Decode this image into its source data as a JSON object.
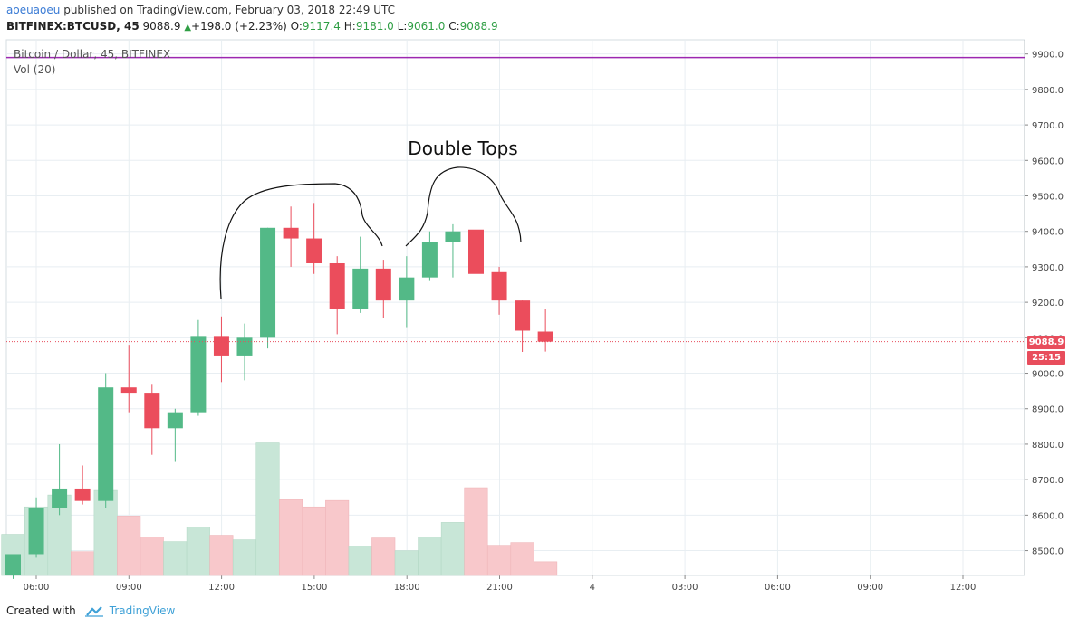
{
  "header": {
    "author": "aoeuaoeu",
    "published_text": "published on TradingView.com, February 03, 2018 22:49 UTC",
    "symbol": "BITFINEX:BTCUSD, 45",
    "last": "9088.9",
    "change": "+198.0 (+2.23%)",
    "o_label": "O:",
    "o_value": "9117.4",
    "h_label": "H:",
    "h_value": "9181.0",
    "l_label": "L:",
    "l_value": "9061.0",
    "c_label": "C:",
    "c_value": "9088.9"
  },
  "legend": {
    "title": "Bitcoin / Dollar, 45, BITFINEX",
    "volume": "Vol (20)"
  },
  "footer": {
    "created_with": "Created with",
    "brand": "TradingView"
  },
  "badges": {
    "price": "9088.9",
    "countdown": "25:15"
  },
  "colors": {
    "up": "#53b987",
    "down": "#eb4d5c",
    "up_vol": "#c8e6d7",
    "down_vol": "#f8c8cb",
    "grid": "#e8eef2",
    "hline": "#9c27b0",
    "last_price_line": "#e84d5c"
  },
  "chart_data": {
    "type": "candlestick",
    "title": "Bitcoin / Dollar, 45, BITFINEX",
    "annotation": "Double Tops",
    "y_ticks": [
      8500,
      8600,
      8700,
      8800,
      8900,
      9000,
      9100,
      9200,
      9300,
      9400,
      9500,
      9600,
      9700,
      9800,
      9900
    ],
    "y_tick_labels": [
      "8500.0",
      "8600.0",
      "8700.0",
      "8800.0",
      "8900.0",
      "9000.0",
      "9100.0",
      "9200.0",
      "9300.0",
      "9400.0",
      "9500.0",
      "9600.0",
      "9700.0",
      "9800.0",
      "9900.0"
    ],
    "x_tick_labels": [
      "06:00",
      "09:00",
      "12:00",
      "15:00",
      "18:00",
      "21:00",
      "4",
      "03:00",
      "06:00",
      "09:00",
      "12:00"
    ],
    "ylim": [
      8430,
      9940
    ],
    "horizontal_line": 9890,
    "last_price": 9088.9,
    "candles": [
      {
        "t": "05:15",
        "o": 8430,
        "h": 8490,
        "l": 8420,
        "c": 8490,
        "vol": 0.45
      },
      {
        "t": "06:00",
        "o": 8490,
        "h": 8650,
        "l": 8480,
        "c": 8620,
        "vol": 0.75
      },
      {
        "t": "06:45",
        "o": 8620,
        "h": 8800,
        "l": 8600,
        "c": 8675,
        "vol": 0.88
      },
      {
        "t": "07:30",
        "o": 8675,
        "h": 8740,
        "l": 8630,
        "c": 8640,
        "vol": 0.26
      },
      {
        "t": "08:15",
        "o": 8640,
        "h": 9000,
        "l": 8620,
        "c": 8960,
        "vol": 0.93
      },
      {
        "t": "09:00",
        "o": 8960,
        "h": 9080,
        "l": 8890,
        "c": 8945,
        "vol": 0.65
      },
      {
        "t": "09:45",
        "o": 8945,
        "h": 8970,
        "l": 8770,
        "c": 8845,
        "vol": 0.42
      },
      {
        "t": "10:30",
        "o": 8845,
        "h": 8900,
        "l": 8750,
        "c": 8890,
        "vol": 0.37
      },
      {
        "t": "11:15",
        "o": 8890,
        "h": 9150,
        "l": 8880,
        "c": 9105,
        "vol": 0.53
      },
      {
        "t": "12:00",
        "o": 9105,
        "h": 9160,
        "l": 8975,
        "c": 9050,
        "vol": 0.44
      },
      {
        "t": "12:45",
        "o": 9050,
        "h": 9140,
        "l": 8980,
        "c": 9100,
        "vol": 0.39
      },
      {
        "t": "13:30",
        "o": 9100,
        "h": 9410,
        "l": 9070,
        "c": 9410,
        "vol": 1.45
      },
      {
        "t": "14:15",
        "o": 9410,
        "h": 9470,
        "l": 9300,
        "c": 9380,
        "vol": 0.83
      },
      {
        "t": "15:00",
        "o": 9380,
        "h": 9480,
        "l": 9280,
        "c": 9310,
        "vol": 0.75
      },
      {
        "t": "15:45",
        "o": 9310,
        "h": 9330,
        "l": 9110,
        "c": 9180,
        "vol": 0.82
      },
      {
        "t": "16:30",
        "o": 9180,
        "h": 9385,
        "l": 9170,
        "c": 9295,
        "vol": 0.32
      },
      {
        "t": "17:15",
        "o": 9295,
        "h": 9320,
        "l": 9155,
        "c": 9205,
        "vol": 0.41
      },
      {
        "t": "18:00",
        "o": 9205,
        "h": 9330,
        "l": 9130,
        "c": 9270,
        "vol": 0.27
      },
      {
        "t": "18:45",
        "o": 9270,
        "h": 9400,
        "l": 9260,
        "c": 9370,
        "vol": 0.42
      },
      {
        "t": "19:30",
        "o": 9370,
        "h": 9420,
        "l": 9270,
        "c": 9400,
        "vol": 0.58
      },
      {
        "t": "20:15",
        "o": 9405,
        "h": 9500,
        "l": 9225,
        "c": 9280,
        "vol": 0.96
      },
      {
        "t": "21:00",
        "o": 9285,
        "h": 9300,
        "l": 9165,
        "c": 9205,
        "vol": 0.33
      },
      {
        "t": "21:45",
        "o": 9205,
        "h": 9205,
        "l": 9060,
        "c": 9120,
        "vol": 0.36
      },
      {
        "t": "22:30",
        "o": 9117.4,
        "h": 9181,
        "l": 9061,
        "c": 9088.9,
        "vol": 0.15
      }
    ]
  }
}
